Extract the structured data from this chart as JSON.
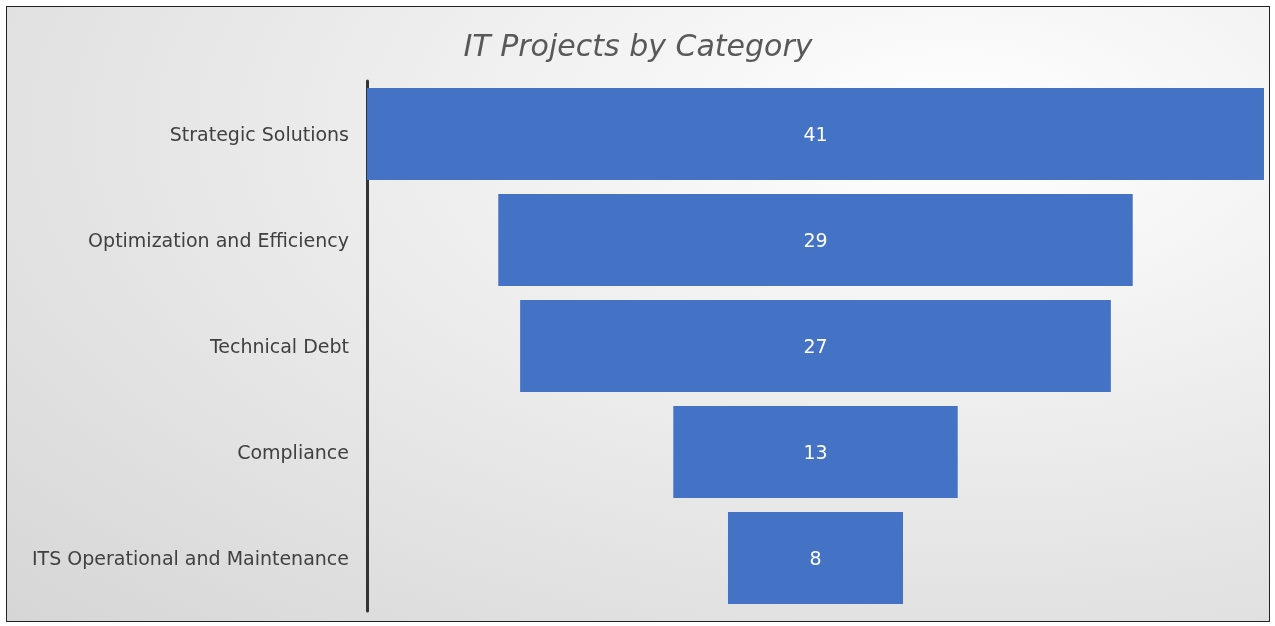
{
  "chart_data": {
    "type": "other",
    "title": "IT Projects by Category",
    "categories": [
      "Strategic Solutions",
      "Optimization and Efficiency",
      "Technical Debt",
      "Compliance",
      "ITS Operational and Maintenance"
    ],
    "values": [
      41,
      29,
      27,
      13,
      8
    ],
    "color": "#4472c4",
    "data_labels": true
  }
}
